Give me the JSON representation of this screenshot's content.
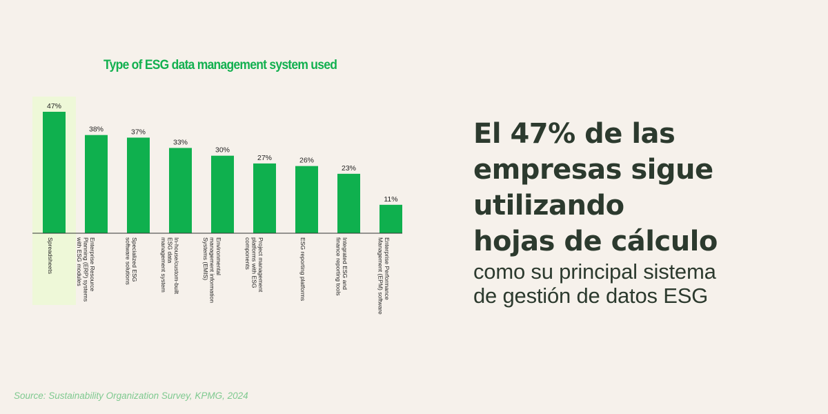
{
  "chart_data": {
    "type": "bar",
    "title": "Type of ESG data management system used",
    "categories": [
      [
        "Spreadsheets"
      ],
      [
        "Enterprise Resource",
        "Planning (ERP) systems",
        "with ESG modules"
      ],
      [
        "Specialized ESG",
        "software solutions"
      ],
      [
        "In-house/custom-built",
        "ESG data",
        "management system"
      ],
      [
        "Environmental",
        "management information",
        "Systems (EMIS)"
      ],
      [
        "Project management",
        "platforms with ESG",
        "components"
      ],
      [
        "ESG reporting platforms"
      ],
      [
        "Integrated ESG and",
        "finance reporting tools"
      ],
      [
        "Enterprise Performance",
        "Management (EPM) software"
      ]
    ],
    "values": [
      47,
      38,
      37,
      33,
      30,
      27,
      26,
      23,
      11
    ],
    "value_labels": [
      "47%",
      "38%",
      "37%",
      "33%",
      "30%",
      "27%",
      "26%",
      "23%",
      "11%"
    ],
    "ylim": [
      0,
      50
    ],
    "highlight_index": 0,
    "bar_color": "#0fb04e",
    "highlight_color": "#eef8d8"
  },
  "headline": {
    "bold_lines": [
      "El 47% de las",
      "empresas sigue",
      "utilizando",
      "hojas de cálculo"
    ],
    "light_lines": [
      "como su principal sistema",
      "de gestión de datos ESG"
    ]
  },
  "source": "Source: Sustainability Organization Survey, KPMG, 2024"
}
